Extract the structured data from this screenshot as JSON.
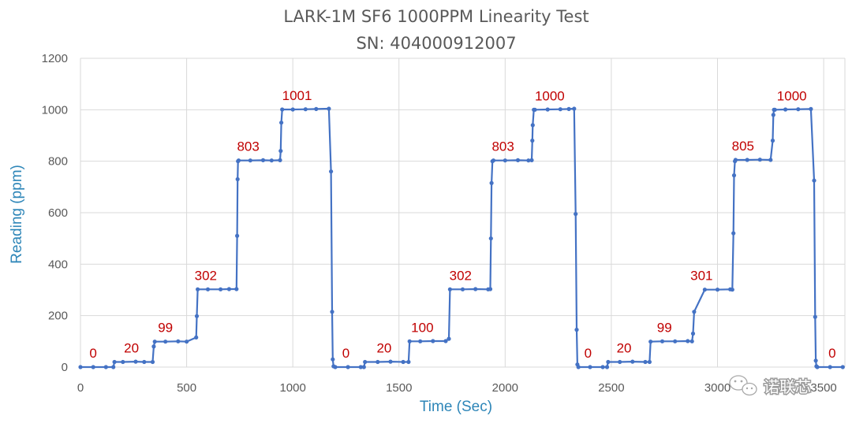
{
  "chart_data": {
    "type": "line",
    "title": "LARK-1M SF6 1000PPM Linearity Test",
    "subtitle": "SN: 404000912007",
    "xlabel": "Time (Sec)",
    "ylabel": "Reading (ppm)",
    "xlim": [
      0,
      3600
    ],
    "ylim": [
      0,
      1200
    ],
    "xticks": [
      "0",
      "500",
      "1000",
      "1500",
      "2000",
      "2500",
      "3000",
      "3500"
    ],
    "yticks": [
      "0",
      "200",
      "400",
      "600",
      "800",
      "1000",
      "1200"
    ],
    "grid": true,
    "legend": "none",
    "colors": {
      "series": "#4472c4",
      "labels": "#c00000",
      "axis_title": "#2e86b8"
    },
    "series": [
      {
        "x": [
          0,
          60,
          120,
          155,
          160,
          200,
          260,
          300,
          340,
          345,
          350,
          400,
          460,
          500,
          545,
          548,
          552,
          600,
          660,
          700,
          735,
          738,
          740,
          742,
          745,
          800,
          860,
          900,
          940,
          943,
          946,
          950,
          1000,
          1060,
          1110,
          1170,
          1180,
          1185,
          1188,
          1192,
          1200,
          1260,
          1320,
          1335,
          1340,
          1400,
          1460,
          1520,
          1545,
          1550,
          1600,
          1660,
          1720,
          1735,
          1740,
          1800,
          1860,
          1920,
          1930,
          1933,
          1936,
          1940,
          1945,
          2000,
          2060,
          2110,
          2125,
          2128,
          2130,
          2135,
          2140,
          2200,
          2260,
          2300,
          2325,
          2332,
          2337,
          2340,
          2345,
          2400,
          2460,
          2480,
          2485,
          2540,
          2600,
          2660,
          2680,
          2685,
          2740,
          2800,
          2860,
          2880,
          2885,
          2890,
          2940,
          3000,
          3060,
          3070,
          3075,
          3078,
          3082,
          3085,
          3140,
          3200,
          3250,
          3260,
          3263,
          3266,
          3270,
          3320,
          3380,
          3440,
          3455,
          3460,
          3463,
          3466,
          3470,
          3530,
          3590
        ],
        "y": [
          0,
          0,
          0,
          0,
          20,
          20,
          21,
          20,
          20,
          80,
          99,
          99,
          100,
          99,
          115,
          198,
          302,
          302,
          302,
          303,
          303,
          510,
          730,
          800,
          803,
          803,
          804,
          803,
          804,
          840,
          950,
          1001,
          1001,
          1002,
          1003,
          1004,
          760,
          215,
          30,
          3,
          0,
          0,
          0,
          0,
          20,
          20,
          21,
          20,
          20,
          100,
          100,
          101,
          101,
          110,
          302,
          302,
          303,
          302,
          303,
          500,
          715,
          800,
          803,
          803,
          804,
          803,
          804,
          880,
          940,
          1000,
          1000,
          1001,
          1002,
          1003,
          1004,
          595,
          145,
          10,
          0,
          0,
          0,
          0,
          20,
          20,
          21,
          20,
          20,
          99,
          100,
          100,
          101,
          100,
          130,
          215,
          301,
          301,
          302,
          301,
          520,
          745,
          800,
          805,
          805,
          806,
          805,
          880,
          980,
          1000,
          1000,
          1001,
          1002,
          1003,
          725,
          195,
          25,
          3,
          0,
          0,
          0
        ]
      }
    ],
    "data_labels": [
      {
        "text": "0",
        "x": 60,
        "y": 0
      },
      {
        "text": "20",
        "x": 240,
        "y": 20
      },
      {
        "text": "99",
        "x": 400,
        "y": 99
      },
      {
        "text": "302",
        "x": 590,
        "y": 302
      },
      {
        "text": "803",
        "x": 790,
        "y": 803
      },
      {
        "text": "1001",
        "x": 1020,
        "y": 1001
      },
      {
        "text": "0",
        "x": 1250,
        "y": 0
      },
      {
        "text": "20",
        "x": 1430,
        "y": 20
      },
      {
        "text": "100",
        "x": 1610,
        "y": 100
      },
      {
        "text": "302",
        "x": 1790,
        "y": 302
      },
      {
        "text": "803",
        "x": 1990,
        "y": 803
      },
      {
        "text": "1000",
        "x": 2210,
        "y": 1000
      },
      {
        "text": "0",
        "x": 2390,
        "y": 0
      },
      {
        "text": "20",
        "x": 2560,
        "y": 20
      },
      {
        "text": "99",
        "x": 2750,
        "y": 99
      },
      {
        "text": "301",
        "x": 2925,
        "y": 301
      },
      {
        "text": "805",
        "x": 3120,
        "y": 805
      },
      {
        "text": "1000",
        "x": 3350,
        "y": 1000
      },
      {
        "text": "0",
        "x": 3540,
        "y": 0
      }
    ]
  },
  "watermark": {
    "icon": "wechat-icon",
    "text": "诺联芯"
  }
}
